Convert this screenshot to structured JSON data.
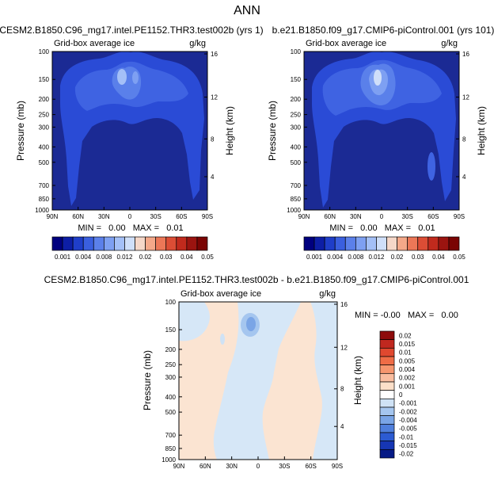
{
  "figure": {
    "title": "ANN",
    "panel1_title": "CESM2.B1850.C96_mg17.intel.PE1152.THR3.test002b (yrs 1)",
    "panel2_title": "b.e21.B1850.f09_g17.CMIP6-piControl.001 (yrs 101)",
    "panel3_title": "CESM2.B1850.C96_mg17.intel.PE1152.THR3.test002b - b.e21.B1850.f09_g17.CMIP6-piControl.001"
  },
  "chart_data": [
    {
      "type": "heatmap",
      "subtitle": "Grid-box average ice",
      "units": "g/kg",
      "ylabel": "Pressure (mb)",
      "ylabel_right": "Height (km)",
      "x_ticks": [
        "90N",
        "60N",
        "30N",
        "0",
        "30S",
        "60S",
        "90S"
      ],
      "y_ticks": [
        "100",
        "150",
        "200",
        "250",
        "300",
        "400",
        "500",
        "700",
        "850",
        "1000"
      ],
      "height_ticks": [
        "16",
        "12",
        "8",
        "4"
      ],
      "min_max_text": "MIN =   0.00   MAX =   0.01",
      "min": 0.0,
      "max": 0.01,
      "colorbar_levels": [
        "0.001",
        "0.004",
        "0.008",
        "0.012",
        "0.02",
        "0.03",
        "0.04",
        "0.05"
      ]
    },
    {
      "type": "heatmap",
      "subtitle": "Grid-box average ice",
      "units": "g/kg",
      "ylabel": "Pressure (mb)",
      "ylabel_right": "Height (km)",
      "x_ticks": [
        "90N",
        "60N",
        "30N",
        "0",
        "30S",
        "60S",
        "90S"
      ],
      "y_ticks": [
        "100",
        "150",
        "200",
        "250",
        "300",
        "400",
        "500",
        "700",
        "850",
        "1000"
      ],
      "height_ticks": [
        "16",
        "12",
        "8",
        "4"
      ],
      "min_max_text": "MIN =   0.00   MAX =   0.01",
      "min": 0.0,
      "max": 0.01,
      "colorbar_levels": [
        "0.001",
        "0.004",
        "0.008",
        "0.012",
        "0.02",
        "0.03",
        "0.04",
        "0.05"
      ]
    },
    {
      "type": "heatmap",
      "subtitle": "Grid-box average ice",
      "units": "g/kg",
      "ylabel": "Pressure (mb)",
      "ylabel_right": "Height (km)",
      "x_ticks": [
        "90N",
        "60N",
        "30N",
        "0",
        "30S",
        "60S",
        "90S"
      ],
      "y_ticks": [
        "100",
        "150",
        "200",
        "250",
        "300",
        "400",
        "500",
        "700",
        "850",
        "1000"
      ],
      "height_ticks": [
        "16",
        "12",
        "8",
        "4"
      ],
      "min_max_text": "MIN = -0.00   MAX =   0.00",
      "min": -0.0,
      "max": 0.0,
      "colorbar_levels": [
        "0.02",
        "0.015",
        "0.01",
        "0.005",
        "0.004",
        "0.002",
        "0.001",
        "0",
        "-0.001",
        "-0.002",
        "-0.004",
        "-0.005",
        "-0.01",
        "-0.015",
        "-0.02"
      ]
    }
  ],
  "colors": {
    "seq_background": "#1b2a94",
    "seq_scale": [
      "#00007f",
      "#0d1ea6",
      "#1f3ec9",
      "#3a5fdf",
      "#5b80ea",
      "#7ea0f2",
      "#a4c0f7",
      "#cfdff9",
      "#f5d7c8",
      "#f4a889",
      "#ec7757",
      "#dc4d35",
      "#c12a1d",
      "#9b1410",
      "#7a0403"
    ],
    "diff_background": "#d6e7f7",
    "diff_peach": "#fbe4d2",
    "diff_scale_top_to_bottom": [
      "#8e0c0c",
      "#c0281f",
      "#e0482f",
      "#ef6c46",
      "#f6966e",
      "#f9bd9f",
      "#fcdfc9",
      "#ffffff",
      "#cfe2f5",
      "#a5c6ef",
      "#7aa5e6",
      "#4f7fdc",
      "#2c5bd2",
      "#1636b4",
      "#061a86"
    ]
  }
}
